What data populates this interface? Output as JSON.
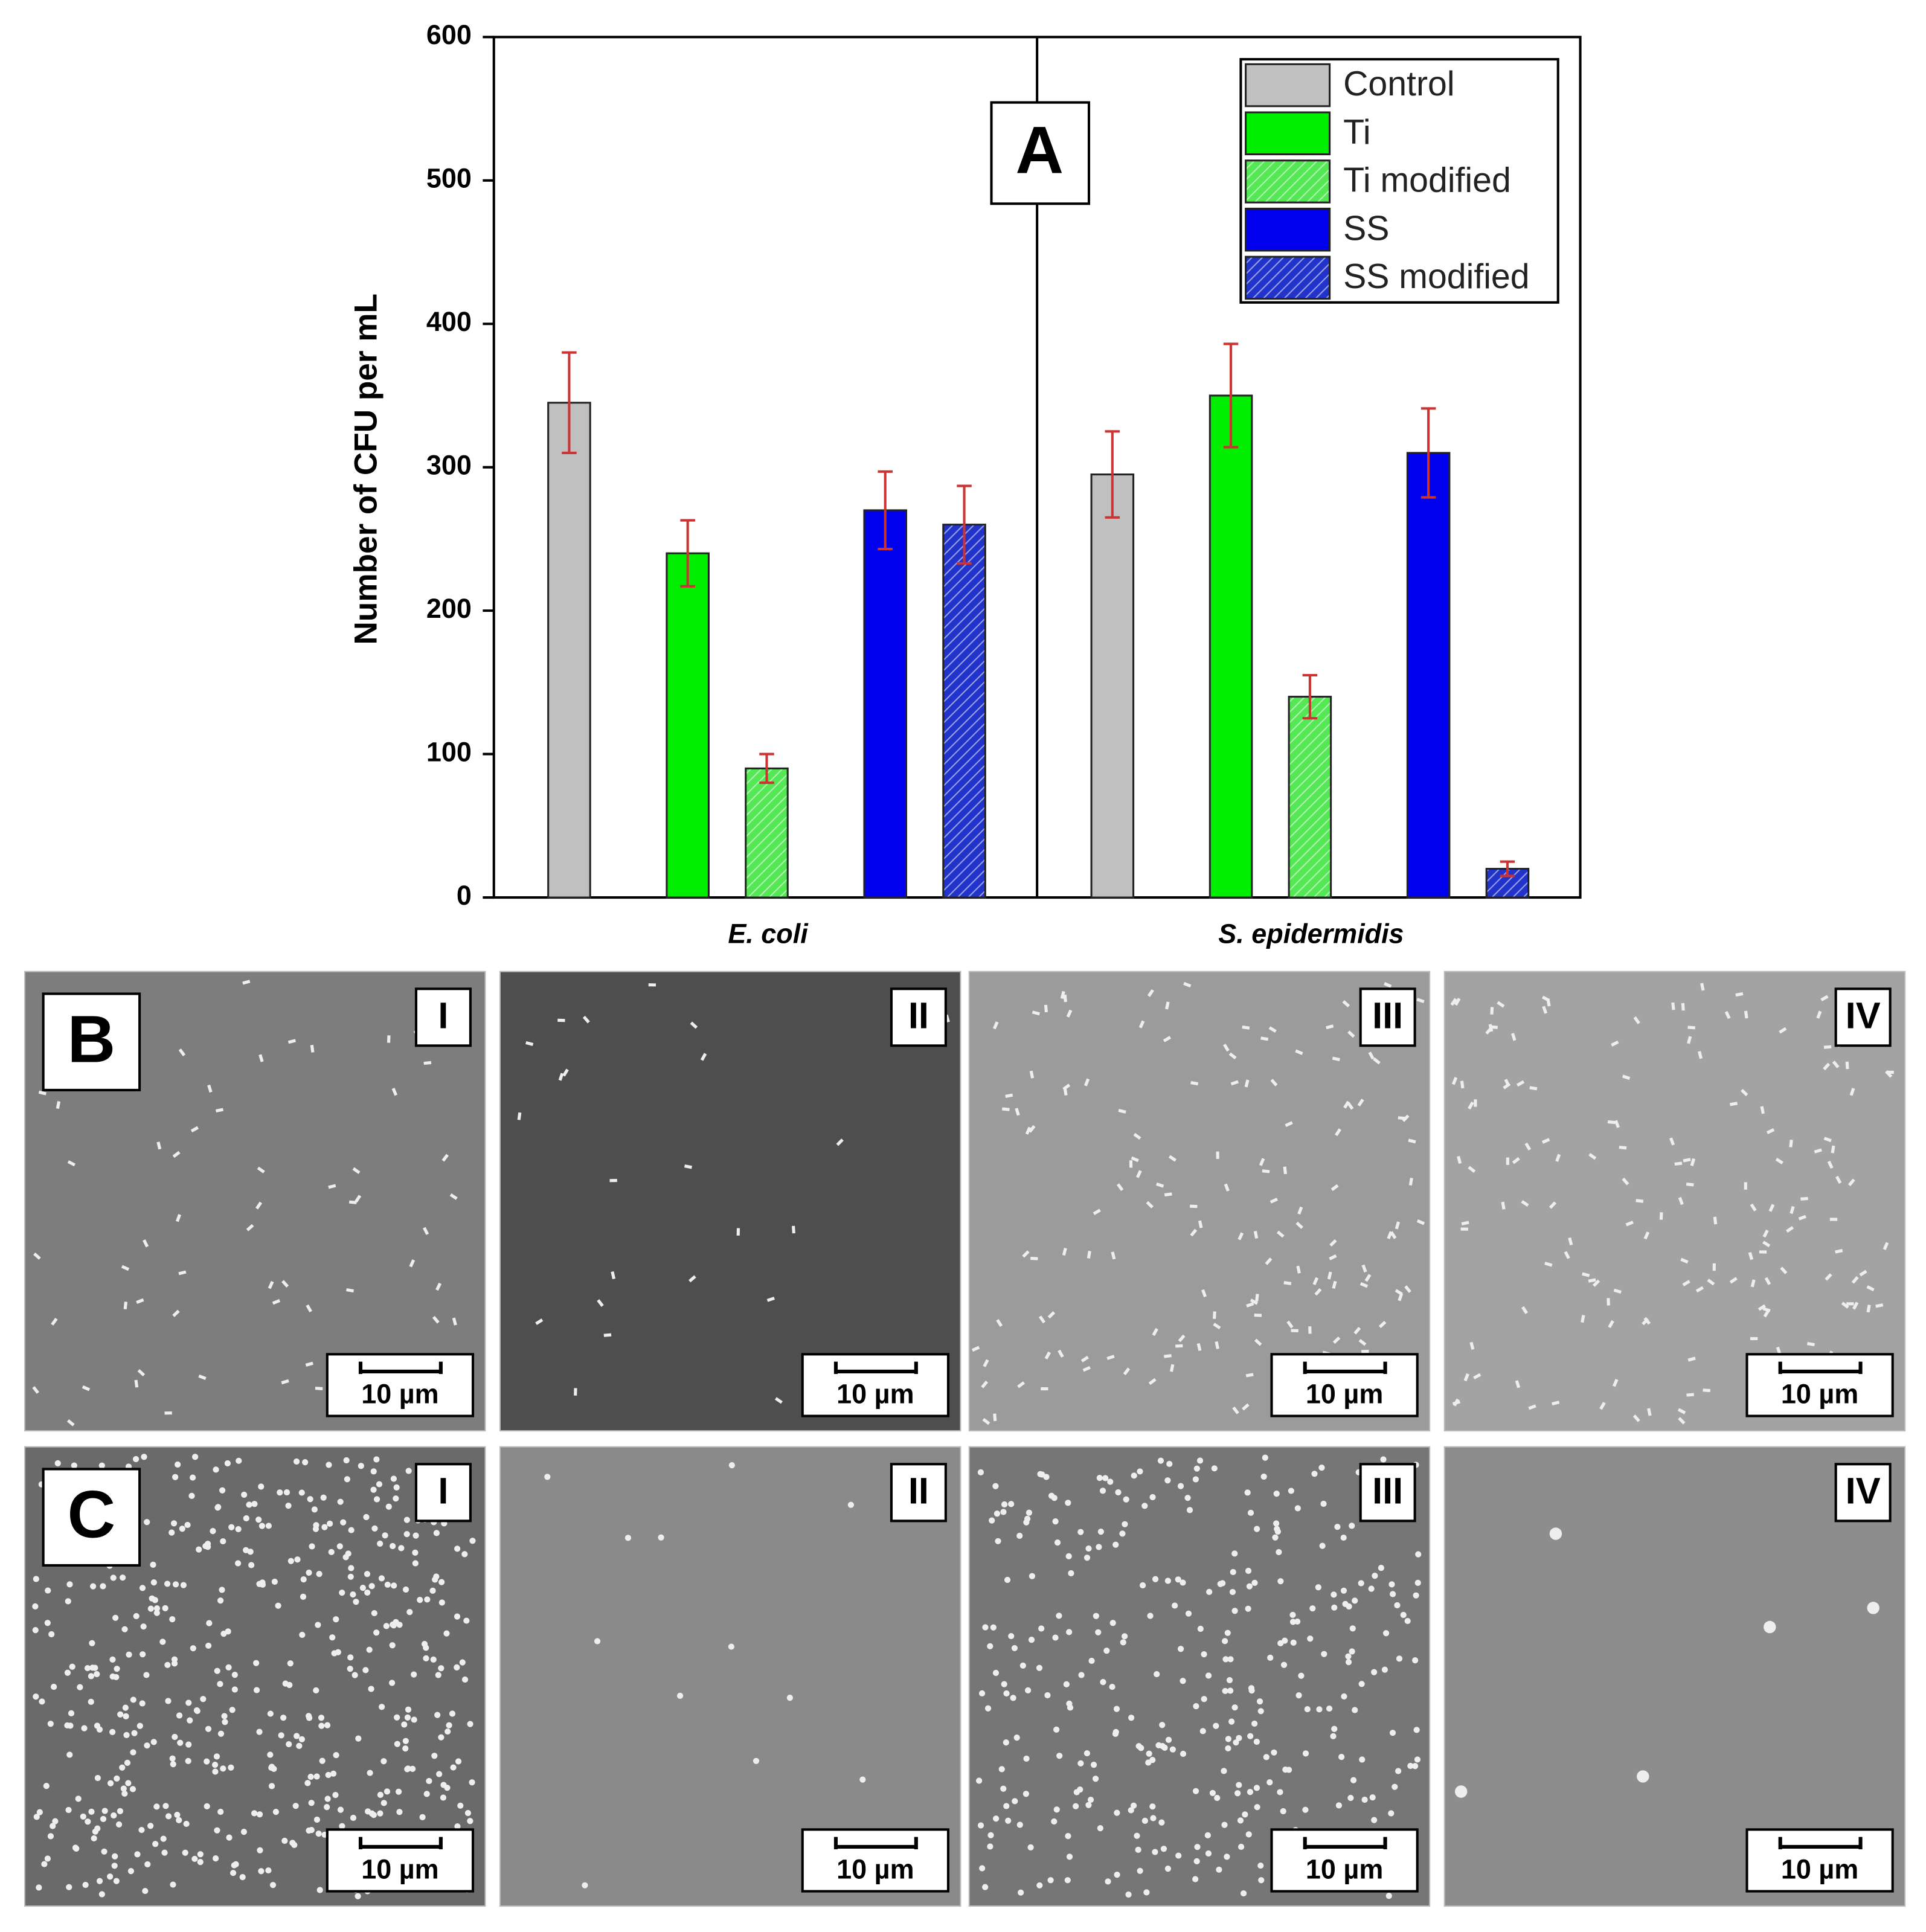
{
  "chart_data": {
    "type": "bar",
    "annotations": [
      "A"
    ],
    "ylabel": "Number of CFU per mL",
    "categories": [
      "E. coli",
      "S. epidermidis"
    ],
    "ylim": [
      0,
      600
    ],
    "yticks": [
      0,
      100,
      200,
      300,
      400,
      500,
      600
    ],
    "error_color": "#cc3333",
    "series": [
      {
        "name": "Control",
        "color": "#c0c0c0",
        "hatch": false,
        "values": [
          345,
          295
        ],
        "errors": [
          35,
          30
        ]
      },
      {
        "name": "Ti",
        "color": "#00ee00",
        "hatch": false,
        "values": [
          240,
          350
        ],
        "errors": [
          23,
          36
        ]
      },
      {
        "name": "Ti modified",
        "color": "#55e855",
        "hatch": true,
        "values": [
          90,
          140
        ],
        "errors": [
          10,
          15
        ]
      },
      {
        "name": "SS",
        "color": "#0000ee",
        "hatch": false,
        "values": [
          270,
          310
        ],
        "errors": [
          27,
          31
        ]
      },
      {
        "name": "SS modified",
        "color": "#2233cc",
        "hatch": true,
        "values": [
          260,
          20
        ],
        "errors": [
          27,
          5
        ]
      }
    ]
  },
  "panels": {
    "rows": [
      {
        "label": "B",
        "images": [
          {
            "label": "I",
            "scale": "10 µm"
          },
          {
            "label": "II",
            "scale": "10 µm"
          },
          {
            "label": "III",
            "scale": "10 µm"
          },
          {
            "label": "IV",
            "scale": "10 µm"
          }
        ]
      },
      {
        "label": "C",
        "images": [
          {
            "label": "I",
            "scale": "10 µm"
          },
          {
            "label": "II",
            "scale": "10 µm"
          },
          {
            "label": "III",
            "scale": "10 µm"
          },
          {
            "label": "IV",
            "scale": "10 µm"
          }
        ]
      }
    ]
  }
}
